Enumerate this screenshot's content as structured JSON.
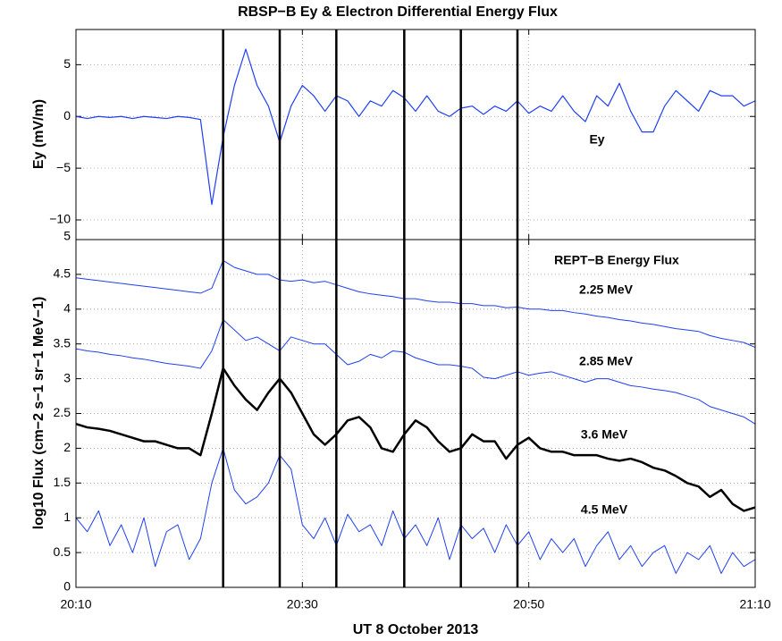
{
  "chart_data": [
    {
      "type": "line",
      "title": "RBSP−B Ey & Electron Differential Energy Flux",
      "ylabel": "Ey (mV/m)",
      "x": [
        "20:10",
        "20:11",
        "20:12",
        "20:13",
        "20:14",
        "20:15",
        "20:16",
        "20:17",
        "20:18",
        "20:19",
        "20:20",
        "20:21",
        "20:22",
        "20:23",
        "20:24",
        "20:25",
        "20:26",
        "20:27",
        "20:28",
        "20:29",
        "20:30",
        "20:31",
        "20:32",
        "20:33",
        "20:34",
        "20:35",
        "20:36",
        "20:37",
        "20:38",
        "20:39",
        "20:40",
        "20:41",
        "20:42",
        "20:43",
        "20:44",
        "20:45",
        "20:46",
        "20:47",
        "20:48",
        "20:49",
        "20:50",
        "20:51",
        "20:52",
        "20:53",
        "20:54",
        "20:55",
        "20:56",
        "20:57",
        "20:58",
        "20:59",
        "21:00",
        "21:01",
        "21:02",
        "21:03",
        "21:04",
        "21:05",
        "21:06",
        "21:07",
        "21:08",
        "21:09",
        "21:10"
      ],
      "series": [
        {
          "name": "Ey",
          "color": "#1f3ff2",
          "linewidth": 1.2,
          "values": [
            0,
            -0.2,
            0,
            -0.1,
            0,
            -0.2,
            0,
            -0.1,
            -0.2,
            0,
            -0.1,
            -0.3,
            -8.5,
            -2,
            3,
            6.5,
            3,
            1,
            -2.5,
            1,
            3,
            2,
            0.5,
            2,
            1.5,
            0,
            1.5,
            1,
            2.5,
            1.8,
            0.5,
            2,
            0.5,
            0,
            0.8,
            1,
            0.2,
            1,
            0.5,
            1.5,
            0.3,
            1,
            0.5,
            2,
            0.5,
            -0.5,
            2,
            1,
            3.2,
            0.5,
            -1.5,
            -1.5,
            1,
            2.5,
            1.5,
            0.5,
            2.5,
            2,
            2,
            1,
            1.5
          ]
        }
      ],
      "ylim": [
        -11.9,
        8.4
      ],
      "yticks": [
        {
          "value": -10,
          "label": "−10"
        },
        {
          "value": -5,
          "label": "−5"
        },
        0,
        5
      ],
      "grid": true,
      "vlines": [
        "20:23",
        "20:28",
        "20:33",
        "20:39",
        "20:44",
        "20:49"
      ]
    },
    {
      "type": "line",
      "annotation": "REPT−B Energy Flux",
      "ylabel": "log10 Flux (cm−2 s−1 sr−1 MeV−1)",
      "xlabel": "UT 8 October 2013",
      "x": [
        "20:10",
        "20:11",
        "20:12",
        "20:13",
        "20:14",
        "20:15",
        "20:16",
        "20:17",
        "20:18",
        "20:19",
        "20:20",
        "20:21",
        "20:22",
        "20:23",
        "20:24",
        "20:25",
        "20:26",
        "20:27",
        "20:28",
        "20:29",
        "20:30",
        "20:31",
        "20:32",
        "20:33",
        "20:34",
        "20:35",
        "20:36",
        "20:37",
        "20:38",
        "20:39",
        "20:40",
        "20:41",
        "20:42",
        "20:43",
        "20:44",
        "20:45",
        "20:46",
        "20:47",
        "20:48",
        "20:49",
        "20:50",
        "20:51",
        "20:52",
        "20:53",
        "20:54",
        "20:55",
        "20:56",
        "20:57",
        "20:58",
        "20:59",
        "21:00",
        "21:01",
        "21:02",
        "21:03",
        "21:04",
        "21:05",
        "21:06",
        "21:07",
        "21:08",
        "21:09",
        "21:10"
      ],
      "xlim": [
        "20:10",
        "21:10"
      ],
      "xticks": [
        "20:10",
        "20:30",
        "20:50",
        "21:10"
      ],
      "series": [
        {
          "name": "2.25 MeV",
          "color": "#1f3ff2",
          "linewidth": 1,
          "values": [
            4.45,
            4.43,
            4.41,
            4.39,
            4.37,
            4.35,
            4.33,
            4.31,
            4.29,
            4.27,
            4.25,
            4.23,
            4.3,
            4.7,
            4.6,
            4.55,
            4.5,
            4.5,
            4.42,
            4.4,
            4.42,
            4.38,
            4.4,
            4.35,
            4.3,
            4.25,
            4.22,
            4.2,
            4.18,
            4.15,
            4.15,
            4.12,
            4.1,
            4.1,
            4.08,
            4.08,
            4.05,
            4.05,
            4.02,
            4.03,
            4.0,
            4.0,
            3.98,
            3.98,
            3.95,
            3.93,
            3.9,
            3.88,
            3.85,
            3.83,
            3.8,
            3.78,
            3.75,
            3.72,
            3.7,
            3.68,
            3.62,
            3.58,
            3.55,
            3.52,
            3.45
          ]
        },
        {
          "name": "2.85 MeV",
          "color": "#1f3ff2",
          "linewidth": 1,
          "values": [
            3.43,
            3.4,
            3.38,
            3.35,
            3.33,
            3.3,
            3.28,
            3.25,
            3.22,
            3.2,
            3.18,
            3.15,
            3.4,
            3.85,
            3.7,
            3.55,
            3.6,
            3.5,
            3.4,
            3.6,
            3.55,
            3.5,
            3.5,
            3.35,
            3.2,
            3.25,
            3.35,
            3.3,
            3.4,
            3.38,
            3.3,
            3.25,
            3.2,
            3.2,
            3.18,
            3.15,
            3.02,
            3.0,
            3.05,
            3.1,
            3.05,
            3.08,
            3.1,
            3.05,
            3.0,
            2.95,
            3.0,
            3.0,
            2.95,
            2.9,
            2.88,
            2.85,
            2.83,
            2.8,
            2.75,
            2.7,
            2.6,
            2.55,
            2.5,
            2.45,
            2.35
          ]
        },
        {
          "name": "3.6 MeV",
          "color": "#000000",
          "linewidth": 2.5,
          "values": [
            2.35,
            2.3,
            2.28,
            2.25,
            2.2,
            2.15,
            2.1,
            2.1,
            2.05,
            2.0,
            2.0,
            1.9,
            2.5,
            3.15,
            2.9,
            2.7,
            2.55,
            2.8,
            3.0,
            2.8,
            2.5,
            2.2,
            2.05,
            2.2,
            2.4,
            2.45,
            2.3,
            2.0,
            1.95,
            2.2,
            2.4,
            2.3,
            2.1,
            1.95,
            2.0,
            2.2,
            2.1,
            2.1,
            1.85,
            2.05,
            2.15,
            2.0,
            1.95,
            1.95,
            1.9,
            1.9,
            1.9,
            1.85,
            1.82,
            1.85,
            1.8,
            1.72,
            1.68,
            1.6,
            1.5,
            1.45,
            1.3,
            1.4,
            1.2,
            1.1,
            1.15
          ]
        },
        {
          "name": "4.5 MeV",
          "color": "#1f3ff2",
          "linewidth": 1,
          "values": [
            1.0,
            0.8,
            1.1,
            0.6,
            0.9,
            0.5,
            1.0,
            0.3,
            0.8,
            0.9,
            0.4,
            0.7,
            1.5,
            2.0,
            1.4,
            1.2,
            1.3,
            1.5,
            1.9,
            1.7,
            0.9,
            0.7,
            1.0,
            0.6,
            1.05,
            0.8,
            0.9,
            0.6,
            1.1,
            0.7,
            0.9,
            0.6,
            1.0,
            0.4,
            0.9,
            0.7,
            0.85,
            0.5,
            0.9,
            0.6,
            0.8,
            0.4,
            0.7,
            0.5,
            0.7,
            0.3,
            0.6,
            0.8,
            0.4,
            0.6,
            0.3,
            0.5,
            0.6,
            0.2,
            0.5,
            0.4,
            0.6,
            0.2,
            0.5,
            0.3,
            0.4
          ]
        }
      ],
      "ylim": [
        0,
        5
      ],
      "yticks": [
        0,
        0.5,
        1,
        1.5,
        2,
        2.5,
        3,
        3.5,
        4,
        4.5,
        5
      ],
      "grid": true
    }
  ]
}
